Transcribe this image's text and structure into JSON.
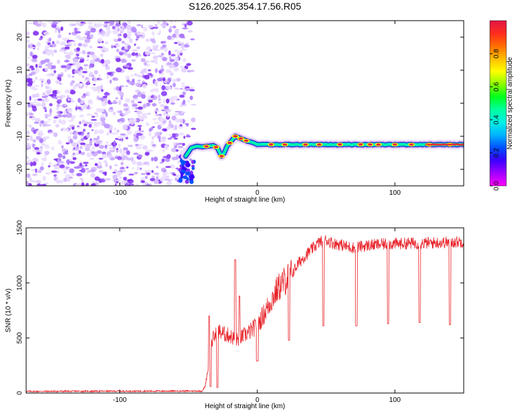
{
  "title": "S126.2025.354.17.56.R05",
  "colors": {
    "snr_line": "#e8242b",
    "track_outline": "#1f1aa8",
    "speckle": "#8b33ff",
    "axis": "#000000"
  },
  "chart_data": [
    {
      "type": "heatmap",
      "name": "spectrogram",
      "xlabel": "Height of straight line (km)",
      "ylabel": "Frequency (Hz)",
      "xlim": [
        -168,
        150
      ],
      "ylim": [
        -25,
        25
      ],
      "xticks": [
        -100,
        0,
        100
      ],
      "xtick_labels": [
        "-100",
        "0",
        "100"
      ],
      "yticks": [
        20,
        10,
        0,
        -10,
        -20
      ],
      "ytick_labels": [
        "20",
        "10",
        "0",
        "-10",
        "-20"
      ],
      "noise_region_x": [
        -168,
        -50
      ],
      "track_points": [
        [
          -52,
          -16
        ],
        [
          -48,
          -13.5
        ],
        [
          -44,
          -13
        ],
        [
          -40,
          -13.2
        ],
        [
          -36,
          -13
        ],
        [
          -32,
          -12.8
        ],
        [
          -29,
          -13.5
        ],
        [
          -26,
          -16
        ],
        [
          -24,
          -15
        ],
        [
          -22,
          -13
        ],
        [
          -19,
          -11.5
        ],
        [
          -16,
          -10
        ],
        [
          -13,
          -10.5
        ],
        [
          -10,
          -11
        ],
        [
          -7,
          -11.5
        ],
        [
          -4,
          -11.8
        ],
        [
          -2,
          -12.1
        ],
        [
          0,
          -12.5
        ],
        [
          150,
          -12.5
        ]
      ],
      "hotspots_x": [
        -37,
        -30,
        -26,
        -20,
        -16,
        -12,
        -8,
        10,
        20,
        35,
        45,
        60,
        75,
        82,
        88,
        100,
        112,
        125,
        140
      ]
    },
    {
      "type": "colorbar",
      "label": "Normalized spectral amplitude",
      "ticks": [
        0.0,
        0.2,
        0.4,
        0.6,
        0.8
      ],
      "tick_labels": [
        "0.0",
        "0.2",
        "0.4",
        "0.6",
        "0.8"
      ],
      "range": [
        0,
        1
      ],
      "gradient": [
        "#ff00ff",
        "#a000ff",
        "#3c00ff",
        "#0050ff",
        "#00b4ff",
        "#00f0e6",
        "#00ffa0",
        "#00ff1e",
        "#8cff00",
        "#ffff00",
        "#ffbe00",
        "#ff6e00",
        "#ff2d1e",
        "#e11446"
      ]
    },
    {
      "type": "line",
      "name": "snr",
      "xlabel": "Height of straight line (km)",
      "ylabel": "SNR (10 * v/v)",
      "xlim": [
        -168,
        150
      ],
      "ylim": [
        0,
        1500
      ],
      "xticks": [
        -100,
        0,
        100
      ],
      "xtick_labels": [
        "-100",
        "0",
        "100"
      ],
      "yticks": [
        0,
        500,
        1000,
        1500
      ],
      "ytick_labels": [
        "0",
        "500",
        "1000",
        "1500"
      ],
      "envelope_x": [
        -168,
        -40,
        -38,
        -36,
        -34,
        -32,
        -28,
        -25,
        -20,
        -15,
        -10,
        -5,
        0,
        5,
        10,
        15,
        20,
        25,
        30,
        35,
        40,
        45,
        50,
        55,
        60,
        65,
        70,
        80,
        90,
        100,
        110,
        120,
        130,
        140,
        150
      ],
      "envelope_y": [
        15,
        18,
        60,
        200,
        420,
        500,
        560,
        540,
        520,
        480,
        520,
        560,
        620,
        720,
        840,
        950,
        1020,
        1080,
        1180,
        1250,
        1310,
        1370,
        1390,
        1360,
        1350,
        1330,
        1320,
        1340,
        1350,
        1355,
        1360,
        1360,
        1365,
        1370,
        1375
      ],
      "dips": [
        [
          -34,
          60
        ],
        [
          -29,
          50
        ],
        [
          0,
          290
        ],
        [
          23,
          480
        ],
        [
          48,
          610
        ],
        [
          72,
          610
        ],
        [
          95,
          630
        ],
        [
          118,
          640
        ],
        [
          140,
          620
        ]
      ],
      "spikes": [
        [
          -16,
          1210
        ],
        [
          -13,
          880
        ],
        [
          -35,
          700
        ]
      ]
    }
  ]
}
